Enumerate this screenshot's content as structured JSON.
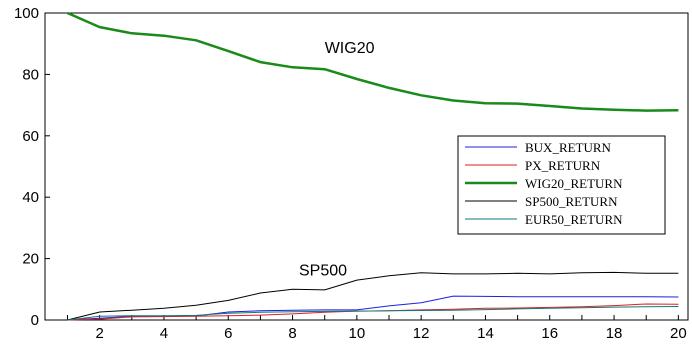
{
  "chart_data": {
    "type": "line",
    "title": "",
    "xlabel": "",
    "ylabel": "",
    "x": [
      1,
      2,
      3,
      4,
      5,
      6,
      7,
      8,
      9,
      10,
      11,
      12,
      13,
      14,
      15,
      16,
      17,
      18,
      19,
      20
    ],
    "xlim": [
      1,
      20
    ],
    "ylim": [
      0,
      100
    ],
    "x_ticks": [
      "2",
      "4",
      "6",
      "8",
      "10",
      "12",
      "14",
      "16",
      "18",
      "20"
    ],
    "y_ticks": [
      "0",
      "20",
      "40",
      "60",
      "80",
      "100"
    ],
    "grid": false,
    "legend_position": "right",
    "series": [
      {
        "name": "BUX_RETURN",
        "color": "#1f1fe0",
        "width": 1,
        "values": [
          0.0,
          0.6,
          1.2,
          1.3,
          1.3,
          2.6,
          3.0,
          3.2,
          3.3,
          3.3,
          4.6,
          5.6,
          7.8,
          7.7,
          7.6,
          7.6,
          7.6,
          7.6,
          7.6,
          7.5
        ]
      },
      {
        "name": "PX_RETURN",
        "color": "#e01f1f",
        "width": 1,
        "values": [
          0.0,
          0.3,
          1.0,
          1.1,
          1.2,
          1.4,
          1.6,
          2.0,
          2.5,
          2.9,
          3.0,
          3.3,
          3.5,
          3.8,
          3.9,
          4.1,
          4.3,
          4.7,
          5.2,
          5.1
        ]
      },
      {
        "name": "WIG20_RETURN",
        "color": "#1a8a1a",
        "width": 2.5,
        "values": [
          100,
          95.4,
          93.4,
          92.6,
          91.1,
          87.6,
          84.0,
          82.3,
          81.7,
          78.5,
          75.6,
          73.2,
          71.5,
          70.6,
          70.5,
          69.7,
          68.9,
          68.5,
          68.2,
          68.3
        ]
      },
      {
        "name": "SP500_RETURN",
        "color": "#000000",
        "width": 1,
        "values": [
          0.0,
          2.6,
          3.2,
          3.8,
          4.8,
          6.4,
          8.8,
          10.0,
          9.8,
          13.0,
          14.4,
          15.4,
          15.0,
          15.0,
          15.2,
          15.0,
          15.4,
          15.5,
          15.2,
          15.2
        ]
      },
      {
        "name": "EUR50_RETURN",
        "color": "#0f7a7a",
        "width": 1,
        "values": [
          0.0,
          1.2,
          1.4,
          1.4,
          1.5,
          2.2,
          2.5,
          2.7,
          2.8,
          2.9,
          3.0,
          3.1,
          3.2,
          3.4,
          3.6,
          3.8,
          4.0,
          4.2,
          4.3,
          4.4
        ]
      }
    ],
    "annotations": [
      {
        "text": "WIG20",
        "x": 9.0,
        "y": 87
      },
      {
        "text": "SP500",
        "x": 8.2,
        "y": 14.5
      }
    ]
  }
}
